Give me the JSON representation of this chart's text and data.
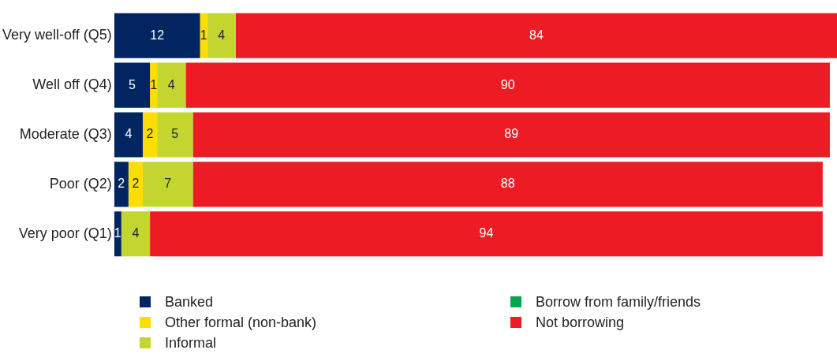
{
  "chart_data": {
    "type": "bar",
    "orientation": "horizontal",
    "stacked": true,
    "data_labels": true,
    "legend": "bottom",
    "grid": false,
    "tick_labels": "y",
    "categories": [
      "Very well-off (Q5)",
      "Well off (Q4)",
      "Moderate (Q3)",
      "Poor (Q2)",
      "Very poor (Q1)"
    ],
    "series": [
      {
        "name": "Banked",
        "color": "#002561",
        "values": [
          12,
          5,
          4,
          2,
          1
        ]
      },
      {
        "name": "Other formal (non-bank)",
        "color": "#ffdd00",
        "values": [
          1,
          1,
          2,
          2,
          null
        ]
      },
      {
        "name": "Informal",
        "color": "#c3d52f",
        "values": [
          4,
          4,
          5,
          7,
          4
        ]
      },
      {
        "name": "Borrow from family/friends",
        "color": "#00a650",
        "values": [
          null,
          null,
          null,
          null,
          null
        ]
      },
      {
        "name": "Not borrowing",
        "color": "#ed1c24",
        "values": [
          84,
          90,
          89,
          88,
          94
        ]
      }
    ]
  }
}
